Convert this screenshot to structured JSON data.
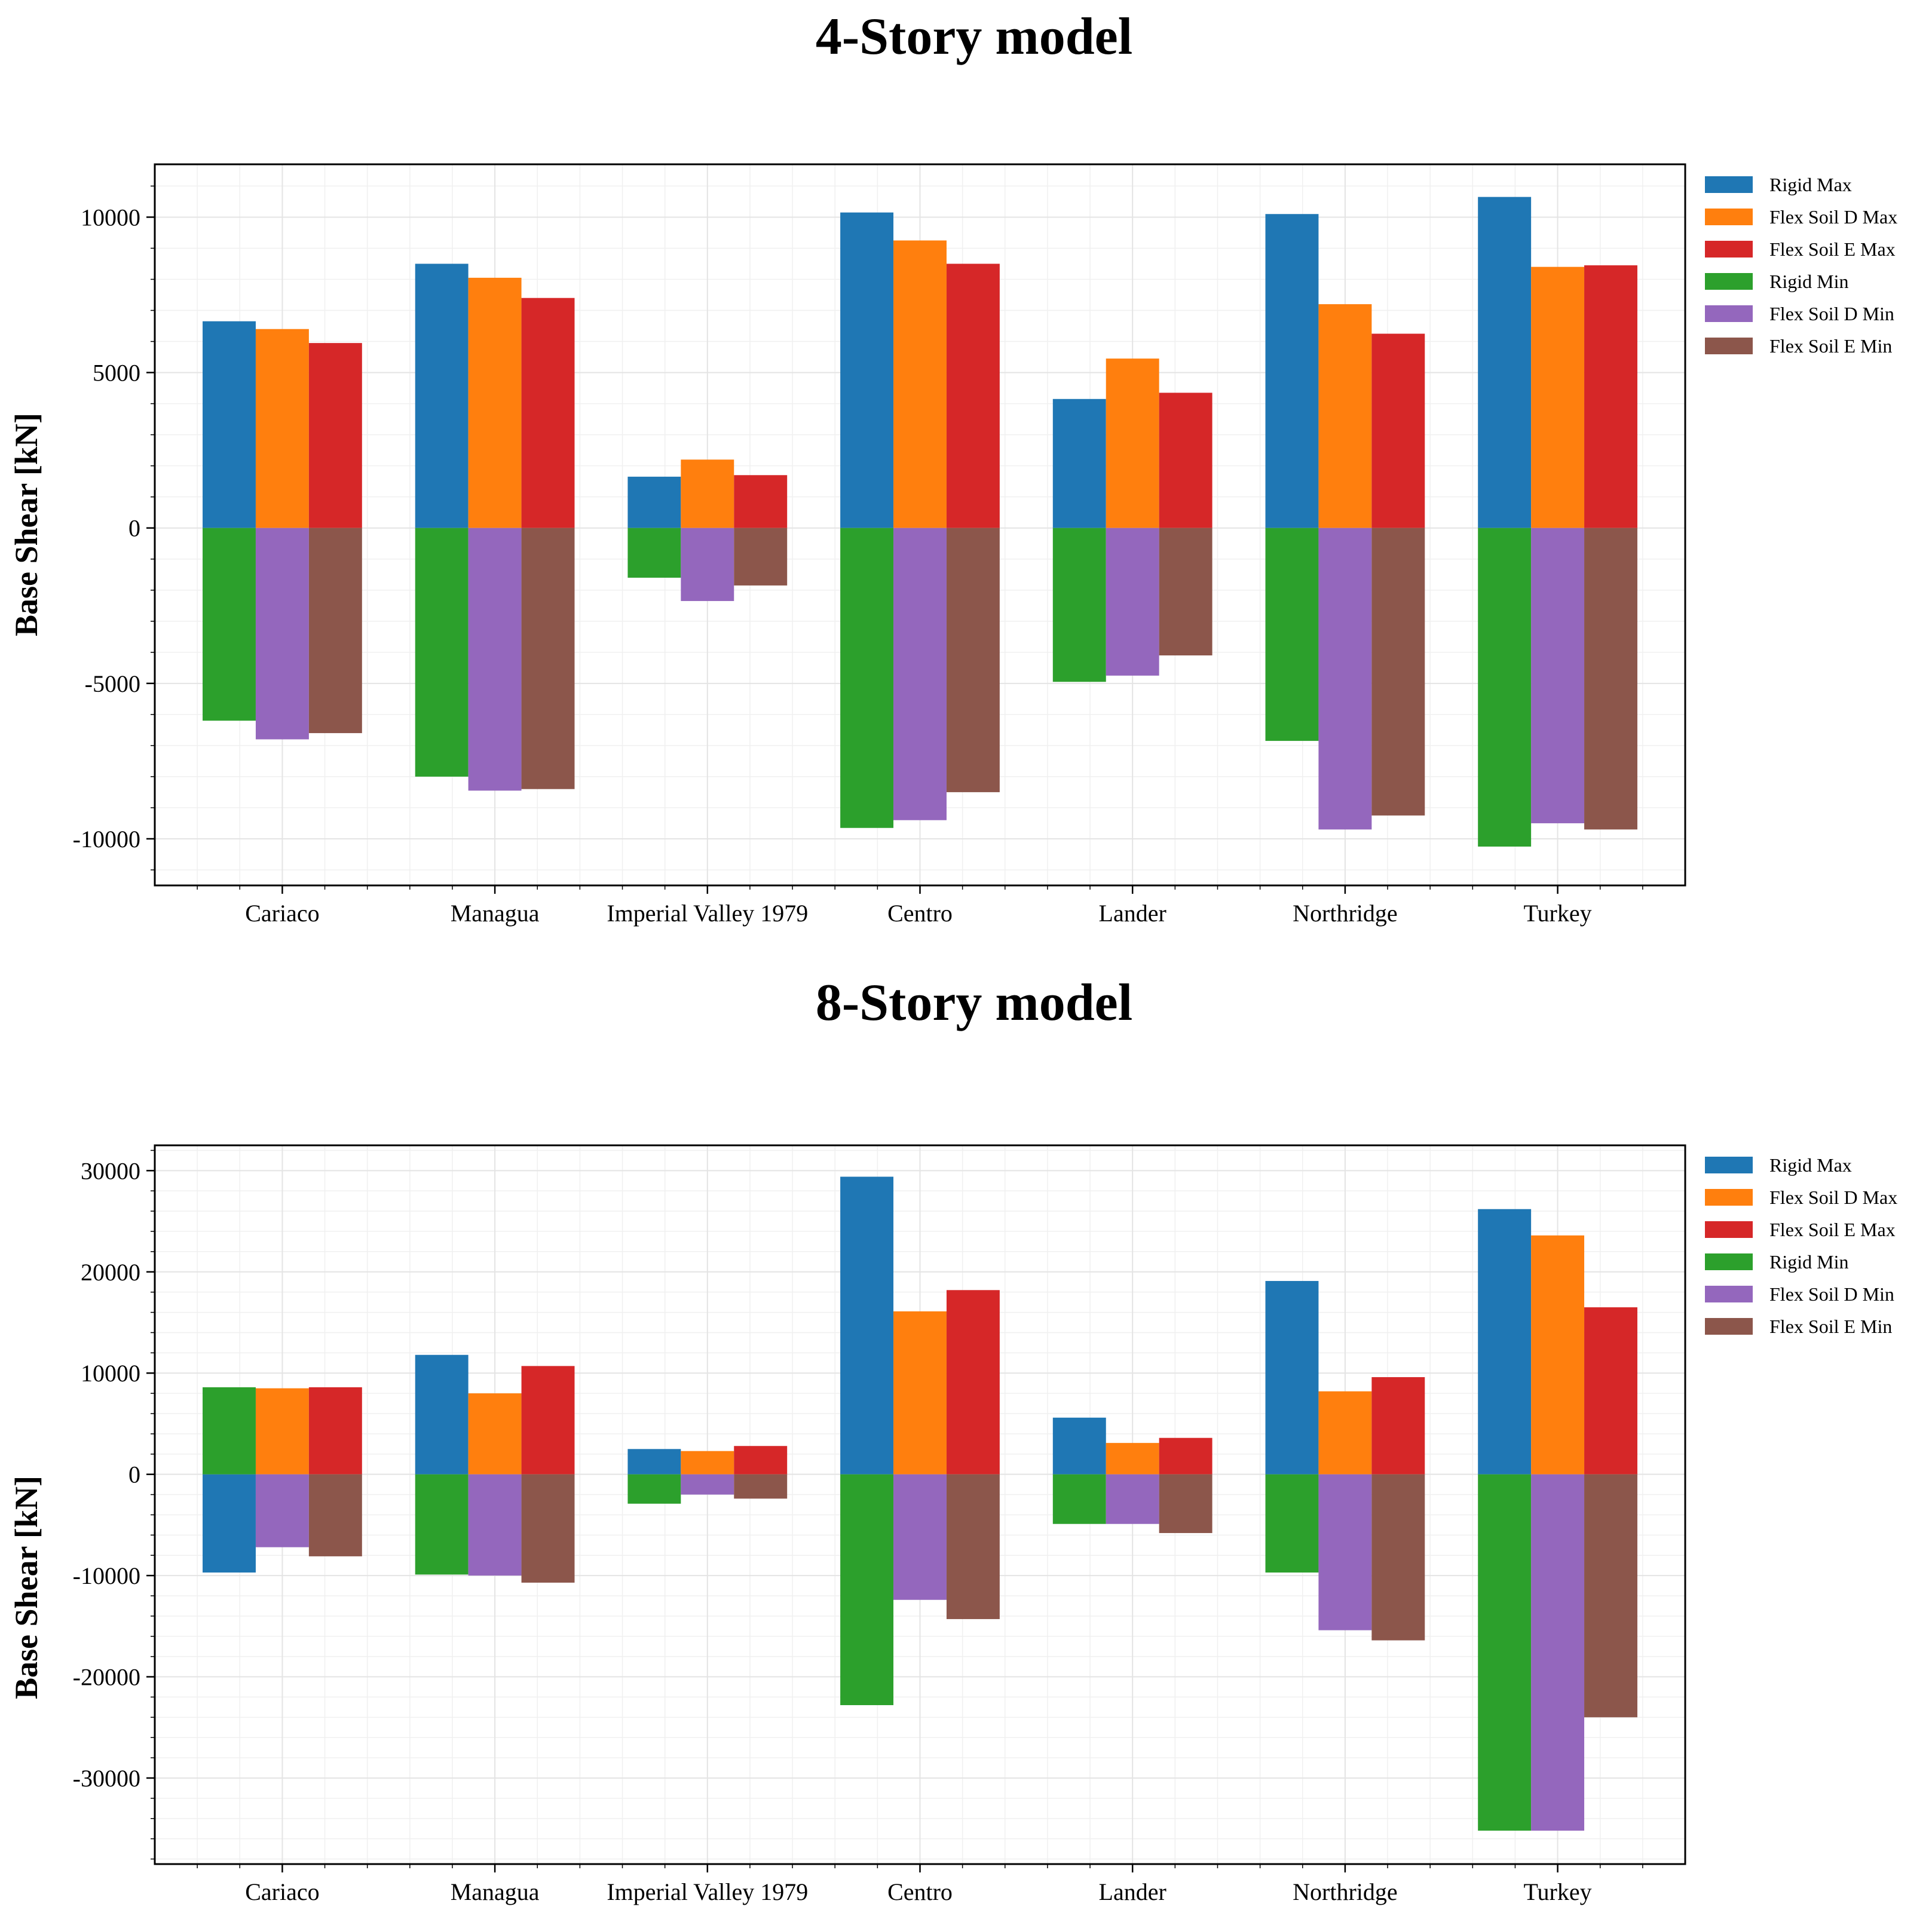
{
  "chart_data": [
    {
      "type": "bar",
      "title": "4-Story model",
      "xlabel": "",
      "ylabel": "Base Shear [kN]",
      "ylim": [
        -11500,
        11700
      ],
      "yticks": [
        10000,
        5000,
        0,
        -5000,
        -10000
      ],
      "categories": [
        "Cariaco",
        "Managua",
        "Imperial Valley 1979",
        "Centro",
        "Lander",
        "Northridge",
        "Turkey"
      ],
      "legend_position": "outside-top-right",
      "series": [
        {
          "name": "Rigid Max",
          "color": "#1f77b4",
          "values": [
            6650,
            8500,
            1650,
            10150,
            4150,
            10100,
            10650
          ]
        },
        {
          "name": "Flex Soil D Max",
          "color": "#ff7f0e",
          "values": [
            6400,
            8050,
            2200,
            9250,
            5450,
            7200,
            8400
          ]
        },
        {
          "name": "Flex Soil E Max",
          "color": "#d62728",
          "values": [
            5950,
            7400,
            1700,
            8500,
            4350,
            6250,
            8450
          ]
        },
        {
          "name": "Rigid Min",
          "color": "#2ca02c",
          "values": [
            -6200,
            -8000,
            -1600,
            -9650,
            -4950,
            -6850,
            -10250
          ]
        },
        {
          "name": "Flex Soil D Min",
          "color": "#9467bd",
          "values": [
            -6800,
            -8450,
            -2350,
            -9400,
            -4750,
            -9700,
            -9500
          ]
        },
        {
          "name": "Flex Soil E Min",
          "color": "#8c564b",
          "values": [
            -6600,
            -8400,
            -1850,
            -8500,
            -4100,
            -9250,
            -9700
          ]
        }
      ]
    },
    {
      "type": "bar",
      "title": "8-Story model",
      "xlabel": "",
      "ylabel": "Base Shear [kN]",
      "ylim": [
        -38500,
        32500
      ],
      "yticks": [
        30000,
        20000,
        10000,
        0,
        -10000,
        -20000,
        -30000
      ],
      "categories": [
        "Cariaco",
        "Managua",
        "Imperial Valley 1979",
        "Centro",
        "Lander",
        "Northridge",
        "Turkey"
      ],
      "legend_position": "outside-top-right",
      "series": [
        {
          "name": "Rigid Max",
          "color": "#1f77b4",
          "values": [
            -9700,
            11800,
            2500,
            29400,
            5600,
            19100,
            26200
          ]
        },
        {
          "name": "Flex Soil D Max",
          "color": "#ff7f0e",
          "values": [
            8500,
            8000,
            2300,
            16100,
            3100,
            8200,
            23600
          ]
        },
        {
          "name": "Flex Soil E Max",
          "color": "#d62728",
          "values": [
            8600,
            10700,
            2800,
            18200,
            3600,
            9600,
            16500
          ]
        },
        {
          "name": "Rigid Min",
          "color": "#2ca02c",
          "values": [
            8600,
            -9900,
            -2900,
            -22800,
            -4900,
            -9700,
            -35200
          ]
        },
        {
          "name": "Flex Soil D Min",
          "color": "#9467bd",
          "values": [
            -7200,
            -10000,
            -2000,
            -12400,
            -4900,
            -15400,
            -35200
          ]
        },
        {
          "name": "Flex Soil E Min",
          "color": "#8c564b",
          "values": [
            -8100,
            -10700,
            -2400,
            -14300,
            -5800,
            -16400,
            -24000
          ]
        }
      ]
    }
  ]
}
